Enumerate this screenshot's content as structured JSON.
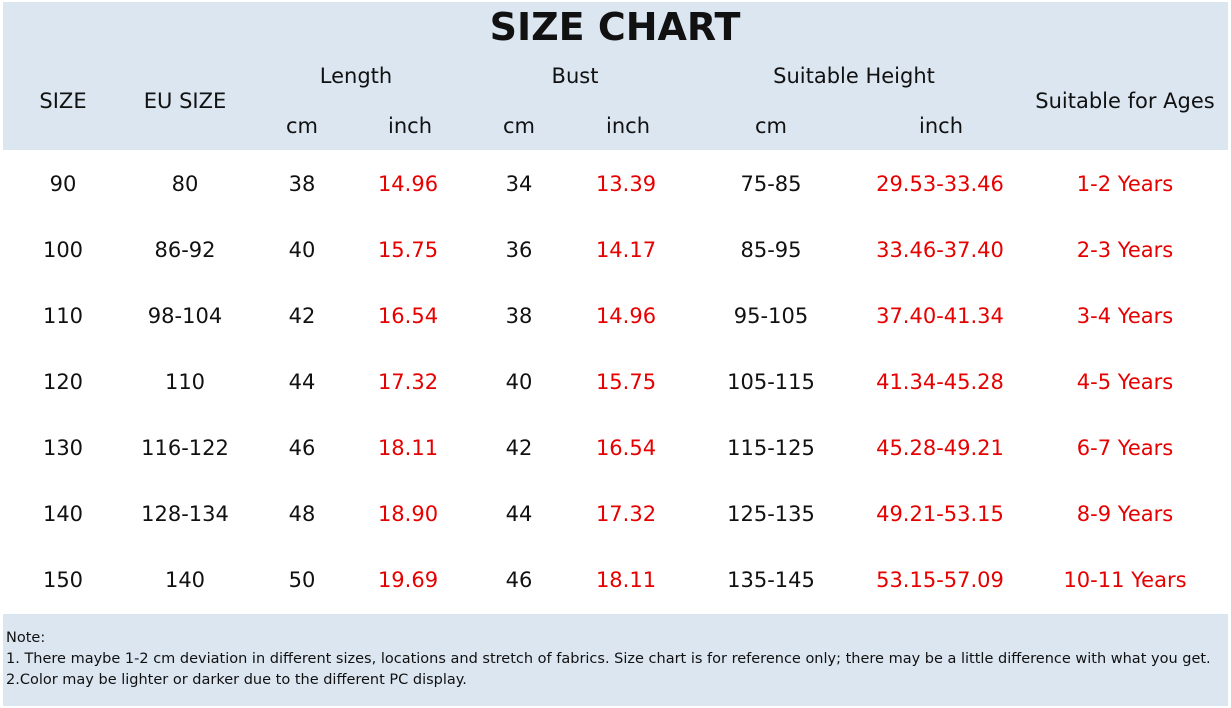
{
  "header": {
    "title": "SIZE CHART"
  },
  "table": {
    "columns": {
      "size": "SIZE",
      "eu_size": "EU SIZE",
      "length": "Length",
      "bust": "Bust",
      "height": "Suitable Height",
      "ages": "Suitable for Ages",
      "units": [
        "cm",
        "inch",
        "cm",
        "inch",
        "cm",
        "inch"
      ]
    },
    "rows": [
      [
        "90",
        "80",
        "38",
        "14.96",
        "34",
        "13.39",
        "75-85",
        "29.53-33.46",
        "1-2 Years"
      ],
      [
        "100",
        "86-92",
        "40",
        "15.75",
        "36",
        "14.17",
        "85-95",
        "33.46-37.40",
        "2-3 Years"
      ],
      [
        "110",
        "98-104",
        "42",
        "16.54",
        "38",
        "14.96",
        "95-105",
        "37.40-41.34",
        "3-4 Years"
      ],
      [
        "120",
        "110",
        "44",
        "17.32",
        "40",
        "15.75",
        "105-115",
        "41.34-45.28",
        "4-5 Years"
      ],
      [
        "130",
        "116-122",
        "46",
        "18.11",
        "42",
        "16.54",
        "115-125",
        "45.28-49.21",
        "6-7 Years"
      ],
      [
        "140",
        "128-134",
        "48",
        "18.90",
        "44",
        "17.32",
        "125-135",
        "49.21-53.15",
        "8-9 Years"
      ],
      [
        "150",
        "140",
        "50",
        "19.69",
        "46",
        "18.11",
        "135-145",
        "53.15-57.09",
        "10-11 Years"
      ]
    ]
  },
  "note": {
    "label": "Note:",
    "lines": [
      "1. There maybe 1-2 cm deviation in different sizes, locations and stretch of fabrics. Size chart is for reference only; there may be a little difference with what you get.",
      "2.Color may be lighter or darker due to the different PC display."
    ]
  }
}
